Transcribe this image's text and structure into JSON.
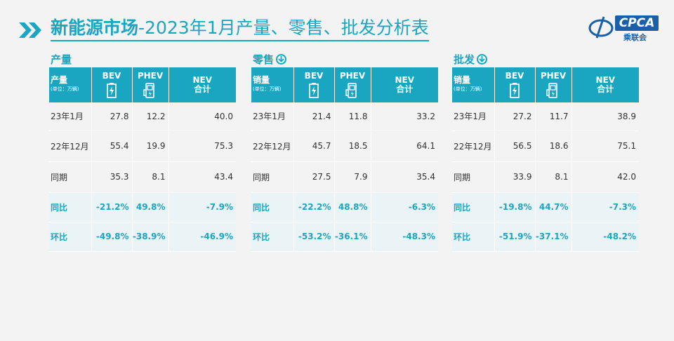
{
  "page": {
    "title_bold": "新能源市场",
    "title_rest": "-2023年1月产量、零售、批发分析表",
    "logo_text": "CPCA",
    "logo_sub": "乘联会"
  },
  "sections": [
    {
      "key": "production",
      "title": "产量",
      "has_down_icon": false,
      "corner_label": "产量",
      "corner_unit": "(单位：万辆)",
      "rows": [
        {
          "label": "23年1月",
          "bev": "27.8",
          "phev": "12.2",
          "nev": "40.0"
        },
        {
          "label": "22年12月",
          "bev": "55.4",
          "phev": "19.9",
          "nev": "75.3"
        },
        {
          "label": "同期",
          "bev": "35.3",
          "phev": "8.1",
          "nev": "43.4"
        },
        {
          "label": "同比",
          "bev": "-21.2%",
          "phev": "49.8%",
          "nev": "-7.9%"
        },
        {
          "label": "环比",
          "bev": "-49.8%",
          "phev": "-38.9%",
          "nev": "-46.9%"
        }
      ]
    },
    {
      "key": "retail",
      "title": "零售",
      "has_down_icon": true,
      "corner_label": "销量",
      "corner_unit": "(单位：万辆)",
      "rows": [
        {
          "label": "23年1月",
          "bev": "21.4",
          "phev": "11.8",
          "nev": "33.2"
        },
        {
          "label": "22年12月",
          "bev": "45.7",
          "phev": "18.5",
          "nev": "64.1"
        },
        {
          "label": "同期",
          "bev": "27.5",
          "phev": "7.9",
          "nev": "35.4"
        },
        {
          "label": "同比",
          "bev": "-22.2%",
          "phev": "48.8%",
          "nev": "-6.3%"
        },
        {
          "label": "环比",
          "bev": "-53.2%",
          "phev": "-36.1%",
          "nev": "-48.3%"
        }
      ]
    },
    {
      "key": "wholesale",
      "title": "批发",
      "has_down_icon": true,
      "corner_label": "销量",
      "corner_unit": "(单位：万辆)",
      "rows": [
        {
          "label": "23年1月",
          "bev": "27.2",
          "phev": "11.7",
          "nev": "38.9"
        },
        {
          "label": "22年12月",
          "bev": "56.5",
          "phev": "18.6",
          "nev": "75.1"
        },
        {
          "label": "同期",
          "bev": "33.9",
          "phev": "8.1",
          "nev": "42.0"
        },
        {
          "label": "同比",
          "bev": "-19.8%",
          "phev": "44.7%",
          "nev": "-7.3%"
        },
        {
          "label": "环比",
          "bev": "-51.9%",
          "phev": "-37.1%",
          "nev": "-48.2%"
        }
      ]
    }
  ],
  "columns": {
    "bev": "BEV",
    "phev": "PHEV",
    "nev_line1": "NEV",
    "nev_line2": "合计"
  },
  "colors": {
    "accent": "#1aa6c1",
    "background": "#f3f3f3",
    "logo_blue": "#1a5fa8"
  },
  "chart_data": {
    "type": "table",
    "title": "新能源市场-2023年1月产量、零售、批发分析表",
    "unit": "(单位：万辆)",
    "columns": [
      "BEV",
      "PHEV",
      "NEV 合计"
    ],
    "row_labels": [
      "23年1月",
      "22年12月",
      "同期",
      "同比",
      "环比"
    ],
    "tables": [
      {
        "name": "产量",
        "values": [
          [
            27.8,
            12.2,
            40.0
          ],
          [
            55.4,
            19.9,
            75.3
          ],
          [
            35.3,
            8.1,
            43.4
          ],
          [
            "-21.2%",
            "49.8%",
            "-7.9%"
          ],
          [
            "-49.8%",
            "-38.9%",
            "-46.9%"
          ]
        ]
      },
      {
        "name": "零售",
        "values": [
          [
            21.4,
            11.8,
            33.2
          ],
          [
            45.7,
            18.5,
            64.1
          ],
          [
            27.5,
            7.9,
            35.4
          ],
          [
            "-22.2%",
            "48.8%",
            "-6.3%"
          ],
          [
            "-53.2%",
            "-36.1%",
            "-48.3%"
          ]
        ]
      },
      {
        "name": "批发",
        "values": [
          [
            27.2,
            11.7,
            38.9
          ],
          [
            56.5,
            18.6,
            75.1
          ],
          [
            33.9,
            8.1,
            42.0
          ],
          [
            "-19.8%",
            "44.7%",
            "-7.3%"
          ],
          [
            "-51.9%",
            "-37.1%",
            "-48.2%"
          ]
        ]
      }
    ]
  }
}
